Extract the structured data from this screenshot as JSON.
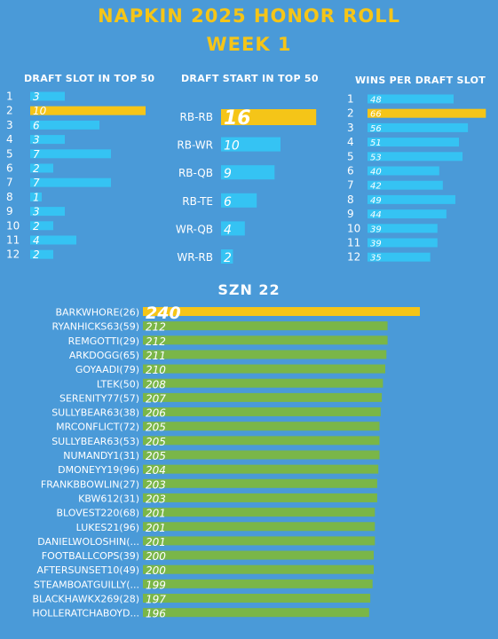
{
  "header": {
    "title": "NAPKIN 2025 HONOR ROLL",
    "subtitle": "WEEK 1"
  },
  "colors": {
    "background": "#4a9ad8",
    "highlight": "#f5c518",
    "bar": "#35c3f3",
    "szn_bar": "#7ab648"
  },
  "chart_data": [
    {
      "type": "bar",
      "title": "DRAFT SLOT IN TOP 50",
      "orientation": "horizontal",
      "categories": [
        "1",
        "2",
        "3",
        "4",
        "5",
        "6",
        "7",
        "8",
        "9",
        "10",
        "11",
        "12"
      ],
      "values": [
        3,
        10,
        6,
        3,
        7,
        2,
        7,
        1,
        3,
        2,
        4,
        2
      ],
      "highlight_index": 1
    },
    {
      "type": "bar",
      "title": "DRAFT START IN TOP 50",
      "orientation": "horizontal",
      "categories": [
        "RB-RB",
        "RB-WR",
        "RB-QB",
        "RB-TE",
        "WR-QB",
        "WR-RB"
      ],
      "values": [
        16,
        10,
        9,
        6,
        4,
        2
      ],
      "highlight_index": 0
    },
    {
      "type": "bar",
      "title": "WINS PER DRAFT SLOT",
      "orientation": "horizontal",
      "categories": [
        "1",
        "2",
        "3",
        "4",
        "5",
        "6",
        "7",
        "8",
        "9",
        "10",
        "11",
        "12"
      ],
      "values": [
        48,
        66,
        56,
        51,
        53,
        40,
        42,
        49,
        44,
        39,
        39,
        35
      ],
      "highlight_index": 1
    },
    {
      "type": "bar",
      "title": "SZN 22",
      "orientation": "horizontal",
      "categories": [
        "BARKWHORE(26)",
        "RYANHICKS63(59)",
        "REMGOTTI(29)",
        "ARKDOGG(65)",
        "GOYAADI(79)",
        "LTEK(50)",
        "SERENITY77(57)",
        "SULLYBEAR63(38)",
        "MRCONFLICT(72)",
        "SULLYBEAR63(53)",
        "NUMANDY1(31)",
        "DMONEYY19(96)",
        "FRANKBBOWLIN(27)",
        "KBW612(31)",
        "BLOVEST220(68)",
        "LUKES21(96)",
        "DANIELWOLOSHIN(...",
        "FOOTBALLCOPS(39)",
        "AFTERSUNSET10(49)",
        "STEAMBOATGUILLY(...",
        "BLACKHAWKX269(28)",
        "HOLLERATCHABOYD..."
      ],
      "values": [
        240,
        212,
        212,
        211,
        210,
        208,
        207,
        206,
        205,
        205,
        205,
        204,
        203,
        203,
        201,
        201,
        201,
        200,
        200,
        199,
        197,
        196
      ],
      "highlight_index": 0
    }
  ]
}
